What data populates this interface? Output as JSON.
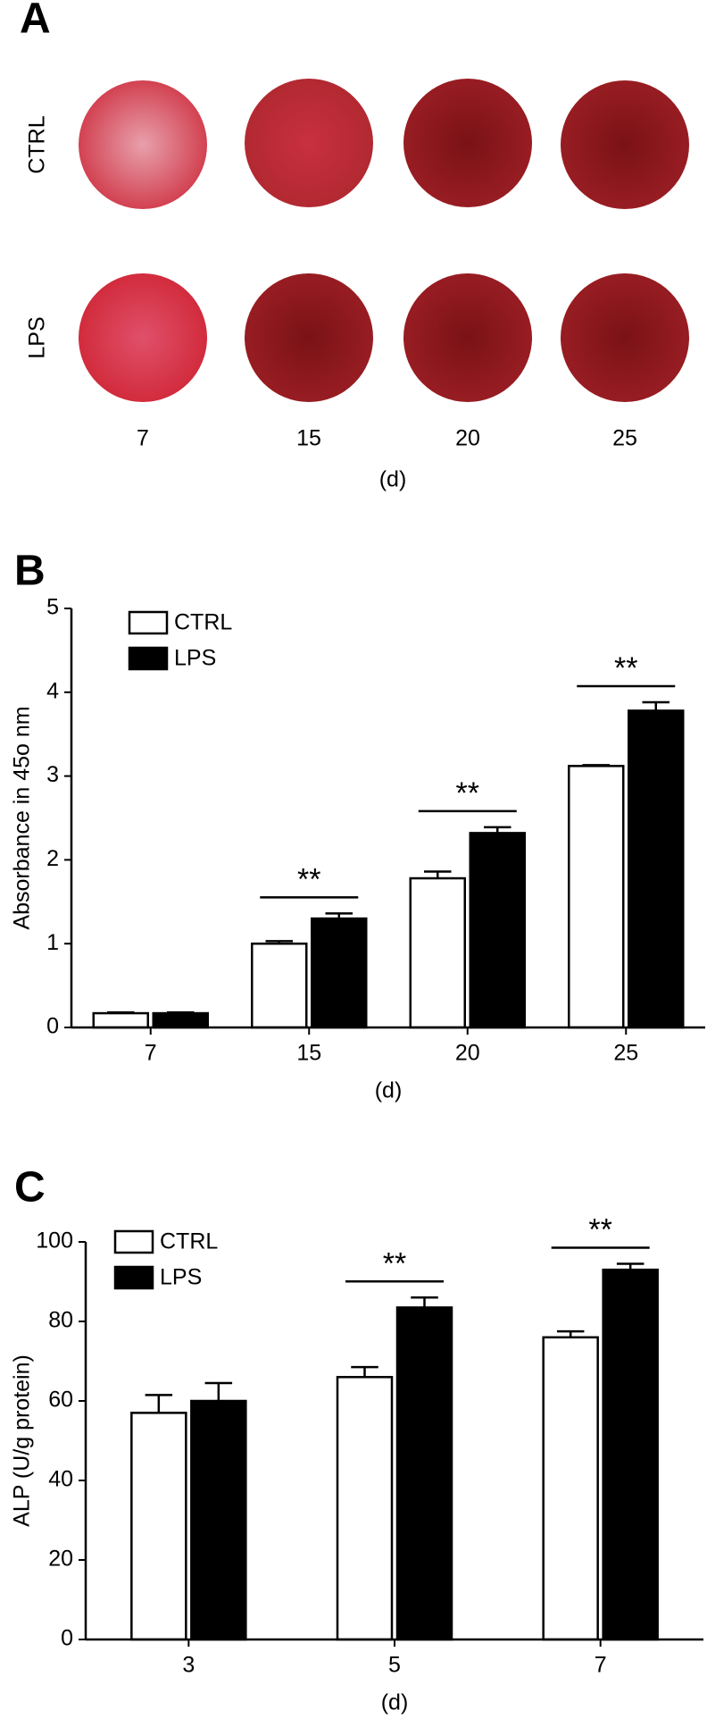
{
  "panel_a": {
    "panel_label": "A",
    "rows": [
      "CTRL",
      "LPS"
    ],
    "days": [
      "7",
      "15",
      "20",
      "25"
    ],
    "x_label": "(d)"
  },
  "chart_data": [
    {
      "type": "bar",
      "panel_label": "B",
      "y_label": "Absorbance in 45o nm",
      "x_label": "(d)",
      "categories": [
        "7",
        "15",
        "20",
        "25"
      ],
      "series": [
        {
          "name": "CTRL",
          "color": "#ffffff",
          "values": [
            0.17,
            1.0,
            1.78,
            3.12
          ],
          "errors": [
            0.01,
            0.03,
            0.08,
            0.01
          ]
        },
        {
          "name": "LPS",
          "color": "#000000",
          "values": [
            0.17,
            1.3,
            2.32,
            3.78
          ],
          "errors": [
            0.01,
            0.06,
            0.07,
            0.1
          ]
        }
      ],
      "significance": [
        null,
        "**",
        "**",
        "**"
      ],
      "ylim": [
        0,
        5
      ],
      "yticks": [
        0,
        1,
        2,
        3,
        4,
        5
      ],
      "legend": "top-left"
    },
    {
      "type": "bar",
      "panel_label": "C",
      "y_label": "ALP (U/g protein)",
      "x_label": "(d)",
      "categories": [
        "3",
        "5",
        "7"
      ],
      "series": [
        {
          "name": "CTRL",
          "color": "#ffffff",
          "values": [
            57,
            66,
            76
          ],
          "errors": [
            4.5,
            2.5,
            1.5
          ]
        },
        {
          "name": "LPS",
          "color": "#000000",
          "values": [
            60,
            83.5,
            93
          ],
          "errors": [
            4.5,
            2.5,
            1.5
          ]
        }
      ],
      "significance": [
        null,
        "**",
        "**"
      ],
      "ylim": [
        0,
        100
      ],
      "yticks": [
        0,
        20,
        40,
        60,
        80,
        100
      ],
      "legend": "top-left"
    }
  ]
}
